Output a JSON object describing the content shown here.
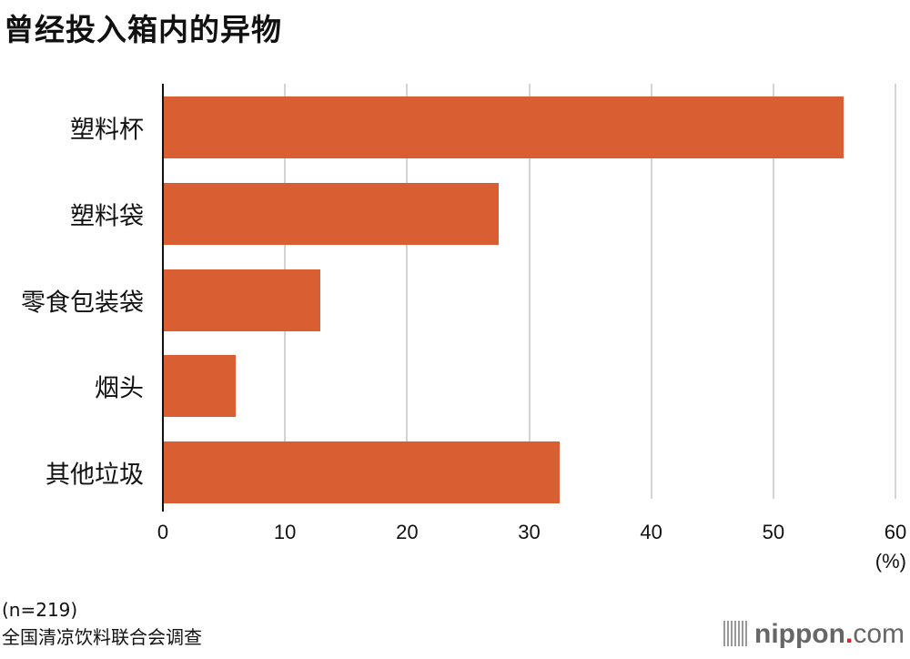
{
  "title": "曾经投入箱内的异物",
  "chart_data": {
    "type": "bar",
    "orientation": "horizontal",
    "title": "曾经投入箱内的异物",
    "categories": [
      "塑料杯",
      "塑料袋",
      "零食包装袋",
      "烟头",
      "其他垃圾"
    ],
    "values": [
      55.7,
      27.4,
      12.8,
      5.9,
      32.4
    ],
    "xlabel": "(%)",
    "ylabel": "",
    "xlim": [
      0,
      60
    ],
    "xticks": [
      "0",
      "10",
      "20",
      "30",
      "40",
      "50",
      "60"
    ],
    "grid": true,
    "bar_color": "#d95f33"
  },
  "unit": "(%)",
  "notes": {
    "sample": "(n=219)",
    "source": "全国清凉饮料联合会调查"
  },
  "logo": {
    "name": "nippon",
    "dot": ".",
    "tld": "com"
  }
}
